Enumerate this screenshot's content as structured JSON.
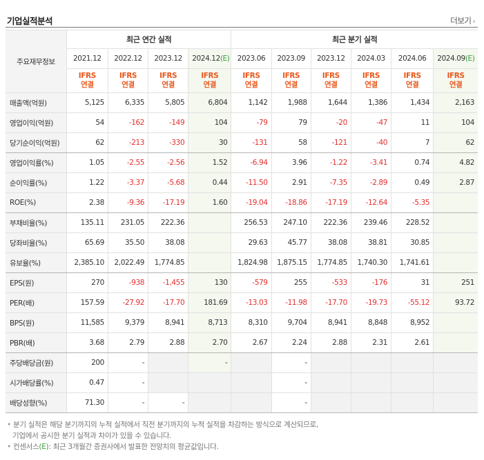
{
  "header": {
    "title": "기업실적분석",
    "more_label": "더보기",
    "more_chevron": "›"
  },
  "table": {
    "corner_label": "주요재무정보",
    "annual_group": "최근 연간 실적",
    "quarter_group": "최근 분기 실적",
    "periods": [
      {
        "label": "2021.12",
        "est": ""
      },
      {
        "label": "2022.12",
        "est": ""
      },
      {
        "label": "2023.12",
        "est": ""
      },
      {
        "label": "2024.12",
        "est": "(E)"
      },
      {
        "label": "2023.06",
        "est": ""
      },
      {
        "label": "2023.09",
        "est": ""
      },
      {
        "label": "2023.12",
        "est": ""
      },
      {
        "label": "2024.03",
        "est": ""
      },
      {
        "label": "2024.06",
        "est": ""
      },
      {
        "label": "2024.09",
        "est": "(E)"
      }
    ],
    "standard_top": "IFRS",
    "standard_bottom": "연결",
    "rows": [
      {
        "label": "매출액(억원)",
        "values": [
          "5,125",
          "6,335",
          "5,805",
          "6,804",
          "1,142",
          "1,988",
          "1,644",
          "1,386",
          "1,434",
          "2,163"
        ]
      },
      {
        "label": "영업이익(억원)",
        "values": [
          "54",
          "-162",
          "-149",
          "104",
          "-79",
          "79",
          "-20",
          "-47",
          "11",
          "104"
        ]
      },
      {
        "label": "당기순이익(억원)",
        "values": [
          "62",
          "-213",
          "-330",
          "30",
          "-131",
          "58",
          "-121",
          "-40",
          "7",
          "62"
        ]
      },
      {
        "label": "영업이익률(%)",
        "values": [
          "1.05",
          "-2.55",
          "-2.56",
          "1.52",
          "-6.94",
          "3.96",
          "-1.22",
          "-3.41",
          "0.74",
          "4.82"
        ]
      },
      {
        "label": "순이익률(%)",
        "values": [
          "1.22",
          "-3.37",
          "-5.68",
          "0.44",
          "-11.50",
          "2.91",
          "-7.35",
          "-2.89",
          "0.49",
          "2.87"
        ]
      },
      {
        "label": "ROE(%)",
        "values": [
          "2.38",
          "-9.36",
          "-17.19",
          "1.60",
          "-19.04",
          "-18.86",
          "-17.19",
          "-12.64",
          "-5.35",
          ""
        ]
      },
      {
        "label": "부채비율(%)",
        "values": [
          "135.11",
          "231.05",
          "222.36",
          "",
          "256.53",
          "247.10",
          "222.36",
          "239.46",
          "228.52",
          ""
        ]
      },
      {
        "label": "당좌비율(%)",
        "values": [
          "65.69",
          "35.50",
          "38.08",
          "",
          "29.63",
          "45.77",
          "38.08",
          "38.81",
          "30.85",
          ""
        ]
      },
      {
        "label": "유보율(%)",
        "values": [
          "2,385.10",
          "2,022.49",
          "1,774.85",
          "",
          "1,824.98",
          "1,875.15",
          "1,774.85",
          "1,740.30",
          "1,741.61",
          ""
        ]
      },
      {
        "label": "EPS(원)",
        "values": [
          "270",
          "-938",
          "-1,455",
          "130",
          "-579",
          "255",
          "-533",
          "-176",
          "31",
          "251"
        ]
      },
      {
        "label": "PER(배)",
        "values": [
          "157.59",
          "-27.92",
          "-17.70",
          "181.69",
          "-13.03",
          "-11.98",
          "-17.70",
          "-19.73",
          "-55.12",
          "93.72"
        ]
      },
      {
        "label": "BPS(원)",
        "values": [
          "11,585",
          "9,379",
          "8,941",
          "8,713",
          "8,310",
          "9,704",
          "8,941",
          "8,848",
          "8,952",
          ""
        ]
      },
      {
        "label": "PBR(배)",
        "values": [
          "3.68",
          "2.79",
          "2.88",
          "2.70",
          "2.67",
          "2.24",
          "2.88",
          "2.31",
          "2.61",
          ""
        ]
      },
      {
        "label": "주당배당금(원)",
        "values": [
          "200",
          "-",
          "",
          "-",
          "",
          "-",
          "",
          "",
          "",
          ""
        ]
      },
      {
        "label": "시가배당률(%)",
        "values": [
          "0.47",
          "-",
          "",
          "",
          "",
          "-",
          "",
          "",
          "",
          ""
        ]
      },
      {
        "label": "배당성향(%)",
        "values": [
          "71.30",
          "-",
          "-",
          "",
          "",
          "-",
          "",
          "",
          "",
          ""
        ]
      }
    ]
  },
  "notes": {
    "bullet": "•",
    "line1": "분기 실적은 해당 분기까지의 누적 실적에서 직전 분기까지의 누적 실적을 차감하는 방식으로 계산되므로,",
    "line2": "기업에서 공시한 분기 실적과 차이가 있을 수 있습니다.",
    "line3_prefix": "컨센서스",
    "line3_e": "(E)",
    "line3_suffix": ": 최근 3개월간 증권사에서 발표한 전망치의 평균값입니다."
  }
}
